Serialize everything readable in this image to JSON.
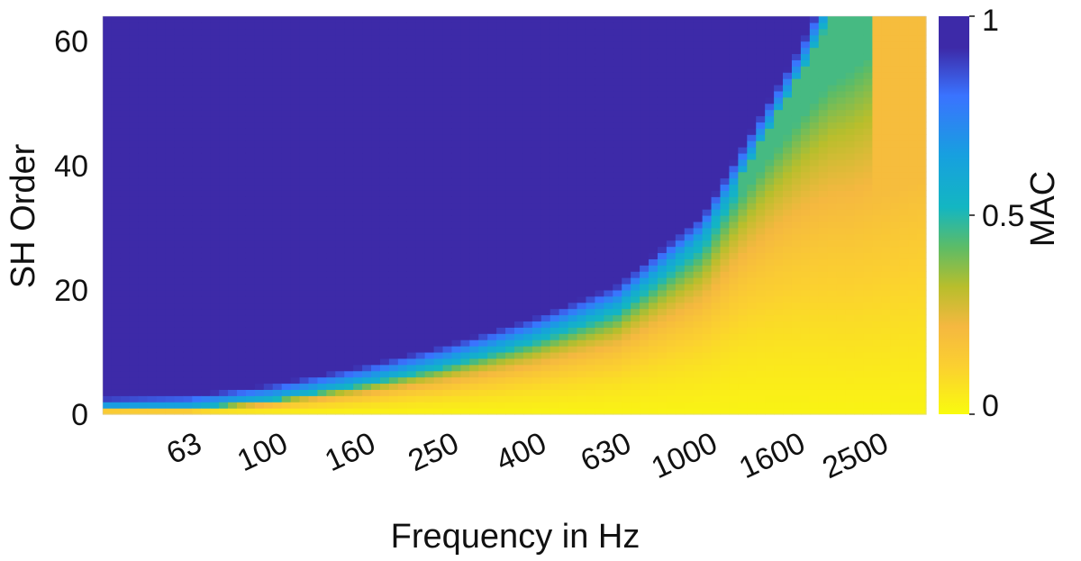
{
  "chart_data": {
    "type": "heatmap",
    "title": "",
    "xlabel": "Frequency in Hz",
    "ylabel": "SH Order",
    "x_scale": "log",
    "x_range_hz": [
      40,
      3300
    ],
    "x_ticks": [
      63,
      100,
      160,
      250,
      400,
      630,
      1000,
      1600,
      2500
    ],
    "x_tick_labels": [
      "63",
      "100",
      "160",
      "250",
      "400",
      "630",
      "1000",
      "1600",
      "2500"
    ],
    "y_range": [
      0,
      64
    ],
    "y_ticks": [
      0,
      20,
      40,
      60
    ],
    "y_tick_labels": [
      "0",
      "20",
      "40",
      "60"
    ],
    "colorbar": {
      "label": "MAC",
      "range": [
        0,
        1
      ],
      "ticks": [
        0,
        0.5,
        1
      ],
      "tick_labels": [
        "0",
        "0.5",
        "1"
      ],
      "colormap": "parula-reversed",
      "colors": [
        "#f9fb0e",
        "#fbd030",
        "#f5b840",
        "#b8be2c",
        "#5cbc67",
        "#13b6c2",
        "#17a0df",
        "#3a73ff",
        "#3d2aa8"
      ]
    },
    "transition_boundary": {
      "description": "order above which MAC is ~1 (dark blue) per frequency",
      "frequency_hz": [
        40,
        63,
        100,
        160,
        250,
        400,
        630,
        1000,
        1600,
        2000
      ],
      "sh_order": [
        1,
        1,
        2.5,
        5,
        8,
        12,
        17,
        28,
        52,
        64
      ]
    }
  }
}
